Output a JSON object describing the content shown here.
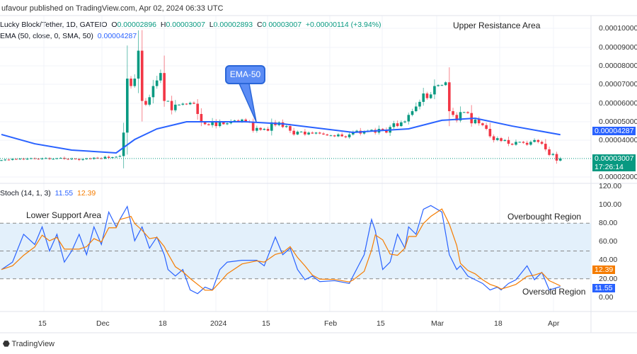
{
  "header": {
    "published": "ufavour published on TradingView.com, Apr 02, 2024 06:33 UTC"
  },
  "legend": {
    "symbol": "Lucky Block/Tether, 1D, GATEIO",
    "o_label": "O",
    "o": "0.00002896",
    "h_label": "H",
    "h": "0.00003007",
    "l_label": "L",
    "l": "0.00002893",
    "c_label": "C",
    "c": "0.00003007",
    "change": "+0.00000114 (+3.94%)",
    "ema_label": "EMA (50, close, 0, SMA, 50)",
    "ema_value": "0.00004287"
  },
  "stoch": {
    "label": "Stoch (14, 1, 3)",
    "k_value": "11.55",
    "d_value": "12.39"
  },
  "annotations": {
    "upper": "Upper Resistance Area",
    "lower": "Lower Support Area",
    "overbought": "Overbought Region",
    "oversold": "Oversold Region",
    "ema_callout": "EMA-50"
  },
  "price_axis": [
    "0.00010000",
    "0.00009000",
    "0.00008000",
    "0.00007000",
    "0.00006000",
    "0.00005000",
    "0.00004000",
    "0.00002000"
  ],
  "price_tags": {
    "ema": "0.00004287",
    "last": "0.00003007",
    "countdown": "17:26:14"
  },
  "stoch_axis": [
    "120.00",
    "100.00",
    "80.00",
    "60.00",
    "40.00",
    "20.00",
    "0.00"
  ],
  "time_axis": [
    "15",
    "Dec",
    "18",
    "2024",
    "15",
    "Feb",
    "15",
    "Mar",
    "18",
    "Apr"
  ],
  "footer": {
    "brand": "TradingView"
  },
  "colors": {
    "up": "#089981",
    "down": "#f23645",
    "ema": "#2962ff",
    "stoch_k": "#2962ff",
    "stoch_d": "#f57c00",
    "band": "#e3f0fb"
  },
  "chart_data": {
    "type": "candlestick",
    "first_date": "2023-11-03",
    "closes": [
      2.92e-05,
      2.95e-05,
      2.93e-05,
      2.98e-05,
      2.97e-05,
      3e-05,
      2.96e-05,
      2.99e-05,
      3.02e-05,
      3e-05,
      2.97e-05,
      3.01e-05,
      3.03e-05,
      2.98e-05,
      2.99e-05,
      3.02e-05,
      3.04e-05,
      2.99e-05,
      2.96e-05,
      3e-05,
      2.98e-05,
      2.93e-05,
      2.97e-05,
      3.01e-05,
      2.99e-05,
      3.05e-05,
      3.02e-05,
      3e-05,
      3.1e-05,
      3.04e-05,
      3.08e-05,
      3.1e-05,
      3.14e-05,
      4.4e-05,
      7.3e-05,
      6.9e-05,
      7.3e-05,
      8.8e-05,
      6.1e-05,
      5.9e-05,
      6.3e-05,
      6.9e-05,
      7.2e-05,
      7.6e-05,
      6.1e-05,
      6.1e-05,
      5.6e-05,
      5.9e-05,
      5.9e-05,
      5.95e-05,
      5.92e-05,
      6e-05,
      5.95e-05,
      5.4e-05,
      4.95e-05,
      4.85e-05,
      4.8e-05,
      5e-05,
      4.75e-05,
      4.95e-05,
      4.85e-05,
      4.9e-05,
      5e-05,
      5.05e-05,
      5e-05,
      5.1e-05,
      5e-05,
      4.95e-05,
      4.5e-05,
      4.65e-05,
      4.55e-05,
      4.6e-05,
      4.5e-05,
      4.95e-05,
      4.8e-05,
      4.95e-05,
      4.7e-05,
      4.75e-05,
      4.5e-05,
      4.3e-05,
      4.45e-05,
      4.45e-05,
      4.3e-05,
      4.4e-05,
      4.35e-05,
      4.4e-05,
      4.35e-05,
      4.3e-05,
      4.25e-05,
      4.25e-05,
      4.2e-05,
      4.3e-05,
      4.2e-05,
      4.15e-05,
      4.3e-05,
      4.45e-05,
      4.5e-05,
      4.35e-05,
      4.45e-05,
      4.5e-05,
      4.55e-05,
      4.4e-05,
      4.6e-05,
      4.55e-05,
      4.4e-05,
      4.7e-05,
      4.9e-05,
      4.75e-05,
      4.95e-05,
      5e-05,
      5.35e-05,
      5.55e-05,
      5.8e-05,
      6.05e-05,
      6.5e-05,
      6.25e-05,
      6.45e-05,
      6.9e-05,
      6.95e-05,
      6.95e-05,
      7.1e-05,
      5.55e-05,
      5.35e-05,
      5.05e-05,
      5.5e-05,
      5.5e-05,
      5.45e-05,
      4.9e-05,
      5.1e-05,
      4.9e-05,
      4.8e-05,
      4.6e-05,
      4.2e-05,
      4e-05,
      4.1e-05,
      3.95e-05,
      4e-05,
      3.8e-05,
      3.75e-05,
      3.9e-05,
      3.9e-05,
      3.85e-05,
      3.75e-05,
      3.9e-05,
      4e-05,
      3.9e-05,
      3.8e-05,
      3.5e-05,
      3.2e-05,
      3.25e-05,
      2.896e-05,
      3.007e-05
    ],
    "ema50": [
      [
        "2023-11-03",
        4.3e-05
      ],
      [
        "2023-11-12",
        3.8e-05
      ],
      [
        "2023-11-22",
        3.46e-05
      ],
      [
        "2023-12-04",
        3.31e-05
      ],
      [
        "2023-12-09",
        4.03e-05
      ],
      [
        "2023-12-15",
        4.6e-05
      ],
      [
        "2023-12-23",
        4.98e-05
      ],
      [
        "2023-12-30",
        4.98e-05
      ],
      [
        "2024-01-08",
        4.98e-05
      ],
      [
        "2024-01-18",
        4.87e-05
      ],
      [
        "2024-02-06",
        4.41e-05
      ],
      [
        "2024-02-12",
        4.49e-05
      ],
      [
        "2024-02-21",
        4.6e-05
      ],
      [
        "2024-03-01",
        5.06e-05
      ],
      [
        "2024-03-10",
        5.17e-05
      ],
      [
        "2024-03-20",
        4.75e-05
      ],
      [
        "2024-04-02",
        4.287e-05
      ]
    ],
    "stoch_k": [
      [
        "2023-11-03",
        30
      ],
      [
        "2023-11-06",
        38
      ],
      [
        "2023-11-09",
        68
      ],
      [
        "2023-11-12",
        57
      ],
      [
        "2023-11-14",
        76
      ],
      [
        "2023-11-16",
        50
      ],
      [
        "2023-11-18",
        68
      ],
      [
        "2023-11-20",
        38
      ],
      [
        "2023-11-22",
        50
      ],
      [
        "2023-11-24",
        68
      ],
      [
        "2023-11-26",
        46
      ],
      [
        "2023-11-28",
        76
      ],
      [
        "2023-11-30",
        57
      ],
      [
        "2023-12-02",
        92
      ],
      [
        "2023-12-04",
        76
      ],
      [
        "2023-12-05",
        84
      ],
      [
        "2023-12-07",
        98
      ],
      [
        "2023-12-08",
        80
      ],
      [
        "2023-12-09",
        61
      ],
      [
        "2023-12-11",
        76
      ],
      [
        "2023-12-13",
        53
      ],
      [
        "2023-12-15",
        65
      ],
      [
        "2023-12-17",
        46
      ],
      [
        "2023-12-18",
        30
      ],
      [
        "2023-12-20",
        23
      ],
      [
        "2023-12-22",
        30
      ],
      [
        "2023-12-24",
        8
      ],
      [
        "2023-12-26",
        4
      ],
      [
        "2023-12-28",
        11
      ],
      [
        "2023-12-30",
        8
      ],
      [
        "2024-01-01",
        30
      ],
      [
        "2024-01-03",
        38
      ],
      [
        "2024-01-07",
        40
      ],
      [
        "2024-01-11",
        40
      ],
      [
        "2024-01-13",
        34
      ],
      [
        "2024-01-16",
        65
      ],
      [
        "2024-01-18",
        46
      ],
      [
        "2024-01-20",
        53
      ],
      [
        "2024-01-22",
        30
      ],
      [
        "2024-01-24",
        19
      ],
      [
        "2024-01-26",
        23
      ],
      [
        "2024-01-28",
        17
      ],
      [
        "2024-02-01",
        18
      ],
      [
        "2024-02-05",
        15
      ],
      [
        "2024-02-06",
        23
      ],
      [
        "2024-02-09",
        46
      ],
      [
        "2024-02-11",
        84
      ],
      [
        "2024-02-12",
        72
      ],
      [
        "2024-02-14",
        30
      ],
      [
        "2024-02-16",
        38
      ],
      [
        "2024-02-18",
        68
      ],
      [
        "2024-02-20",
        53
      ],
      [
        "2024-02-21",
        76
      ],
      [
        "2024-02-23",
        68
      ],
      [
        "2024-02-25",
        95
      ],
      [
        "2024-02-27",
        99
      ],
      [
        "2024-03-01",
        92
      ],
      [
        "2024-03-03",
        46
      ],
      [
        "2024-03-05",
        30
      ],
      [
        "2024-03-06",
        34
      ],
      [
        "2024-03-08",
        23
      ],
      [
        "2024-03-10",
        19
      ],
      [
        "2024-03-12",
        15
      ],
      [
        "2024-03-14",
        8
      ],
      [
        "2024-03-16",
        11
      ],
      [
        "2024-03-17",
        8
      ],
      [
        "2024-03-19",
        15
      ],
      [
        "2024-03-21",
        19
      ],
      [
        "2024-03-24",
        34
      ],
      [
        "2024-03-26",
        19
      ],
      [
        "2024-03-28",
        27
      ],
      [
        "2024-03-30",
        8
      ],
      [
        "2024-04-02",
        11.55
      ]
    ],
    "stoch_d_last": 12.39,
    "price_range": [
      2e-05,
      0.0001
    ],
    "stoch_range": [
      0,
      120
    ],
    "levels": [
      80,
      50,
      20
    ]
  }
}
